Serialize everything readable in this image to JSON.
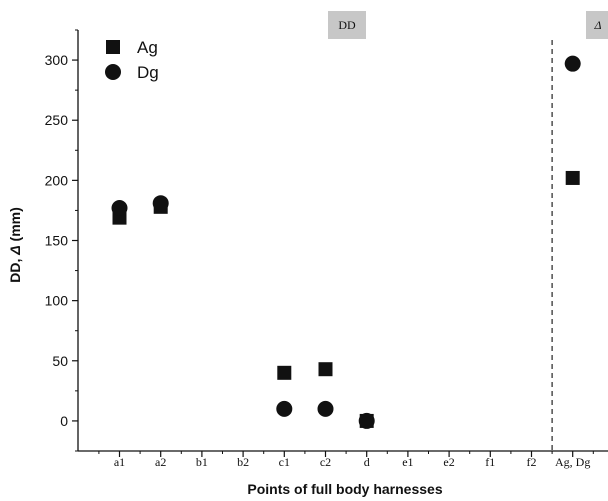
{
  "chart_data": {
    "type": "scatter",
    "categories": [
      "a1",
      "a2",
      "b1",
      "b2",
      "c1",
      "c2",
      "d",
      "e1",
      "e2",
      "f1",
      "f2",
      "Ag, Dg"
    ],
    "series": [
      {
        "name": "Ag",
        "marker": "square",
        "color": "#111111",
        "values": [
          169,
          178,
          null,
          null,
          40,
          43,
          0,
          null,
          null,
          null,
          null,
          202
        ]
      },
      {
        "name": "Dg",
        "marker": "circle",
        "color": "#111111",
        "values": [
          177,
          181,
          null,
          null,
          10,
          10,
          0,
          null,
          null,
          null,
          null,
          297
        ]
      }
    ],
    "xlabel": "Points of full body harnesses",
    "ylabel_main": "DD, ",
    "ylabel_delta": "Δ",
    "ylabel_unit": " (mm)",
    "ylim": [
      -25,
      325
    ],
    "yticks": [
      0,
      50,
      100,
      150,
      200,
      250,
      300
    ],
    "regions": [
      {
        "label": "DD"
      },
      {
        "label": "Δ"
      }
    ],
    "region_separator_after": "f2",
    "grid": false,
    "legend_placement": "top-left"
  }
}
